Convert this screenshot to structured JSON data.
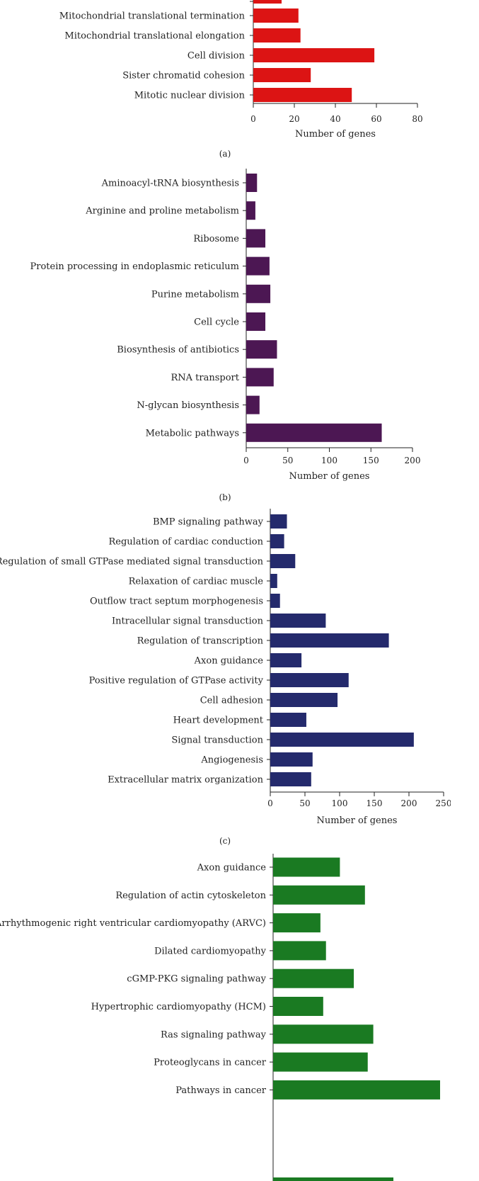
{
  "chart_data": [
    {
      "id": "a",
      "type": "bar",
      "orientation": "horizontal",
      "panel_label": "(a)",
      "xlabel": "Number of genes",
      "xlim": [
        0,
        80
      ],
      "xticks": [
        0,
        20,
        40,
        60,
        80
      ],
      "color": "#dc1414",
      "categories": [
        "Mitochondrial translational termination",
        "Mitochondrial translational elongation",
        "Cell division",
        "Sister chromatid cohesion",
        "Mitotic nuclear division"
      ],
      "values": [
        22,
        23,
        59,
        28,
        48
      ]
    },
    {
      "id": "b",
      "type": "bar",
      "orientation": "horizontal",
      "panel_label": "(b)",
      "xlabel": "Number of genes",
      "xlim": [
        0,
        200
      ],
      "xticks": [
        0,
        50,
        100,
        150,
        200
      ],
      "color": "#4c1753",
      "categories": [
        "Aminoacyl-tRNA biosynthesis",
        "Arginine and proline metabolism",
        "Ribosome",
        "Protein processing in endoplasmic reticulum",
        "Purine metabolism",
        "Cell cycle",
        "Biosynthesis of antibiotics",
        "RNA transport",
        "N-glycan biosynthesis",
        "Metabolic pathways"
      ],
      "values": [
        13,
        11,
        23,
        28,
        29,
        23,
        37,
        33,
        16,
        163
      ]
    },
    {
      "id": "c",
      "type": "bar",
      "orientation": "horizontal",
      "panel_label": "(c)",
      "xlabel": "Number of genes",
      "xlim": [
        0,
        250
      ],
      "xticks": [
        0,
        50,
        100,
        150,
        200,
        250
      ],
      "color": "#242a6c",
      "categories": [
        "BMP signaling pathway",
        "Regulation of cardiac conduction",
        "Regulation of small GTPase mediated signal transduction",
        "Relaxation of cardiac muscle",
        "Outflow tract septum morphogenesis",
        "Intracellular signal transduction",
        "Regulation of transcription",
        "Axon guidance",
        "Positive regulation of GTPase activity",
        "Cell adhesion",
        "Heart development",
        "Signal transduction",
        "Angiogenesis",
        "Extracellular matrix organization"
      ],
      "values": [
        24,
        20,
        36,
        10,
        14,
        80,
        171,
        45,
        113,
        97,
        52,
        207,
        61,
        59
      ]
    },
    {
      "id": "d",
      "type": "bar",
      "orientation": "horizontal",
      "xlim": [
        0,
        60
      ],
      "color": "#1a7a22",
      "categories": [
        "Axon guidance",
        "Regulation of actin cytoskeleton",
        "Arrhythmogenic right ventricular cardiomyopathy (ARVC)",
        "Dilated cardiomyopathy",
        "cGMP-PKG signaling pathway",
        "Hypertrophic cardiomyopathy (HCM)",
        "Ras signaling pathway",
        "Proteoglycans in cancer",
        "Pathways in cancer"
      ],
      "values": [
        24,
        33,
        17,
        19,
        29,
        18,
        36,
        34,
        60
      ]
    }
  ]
}
